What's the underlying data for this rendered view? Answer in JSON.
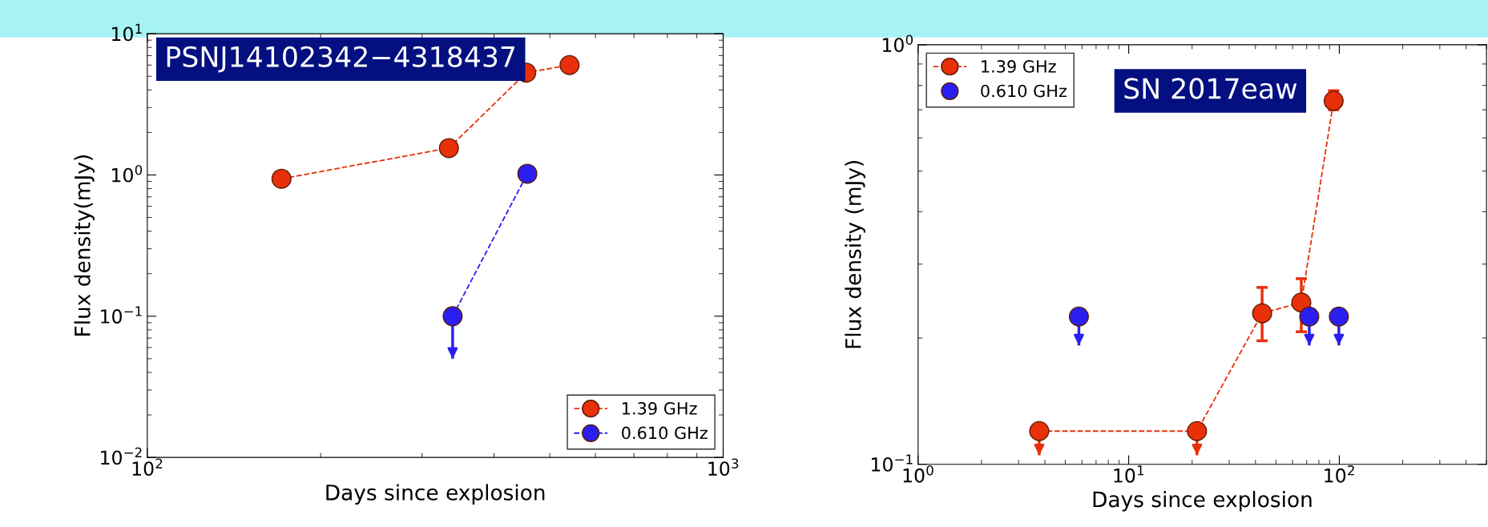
{
  "chart_data": [
    {
      "type": "line",
      "xlabel": "Days since explosion",
      "ylabel": "Flux density(mJy)",
      "log": "xy",
      "legend": "bottom right",
      "marker": "circle",
      "line_style": "dashed",
      "grid": false,
      "xlim": [
        100,
        1000
      ],
      "xticks": [
        {
          "value": 100,
          "label": "10$^{2}$"
        },
        {
          "value": 1000,
          "label": "10$^{3}$"
        }
      ],
      "ylim": [
        0.01,
        10
      ],
      "yticks": [
        {
          "value": 0.01,
          "label": "10$^{−2}$"
        },
        {
          "value": 0.1,
          "label": "10$^{−1}$"
        },
        {
          "value": 1,
          "label": "10$^{0}$"
        },
        {
          "value": 10,
          "label": "10$^{1}$"
        }
      ],
      "annotations": [
        "PSNJ14102342−4318437"
      ],
      "series": [
        {
          "name": "1.39 GHz",
          "color": "#e8300a",
          "x": [
            171,
            334,
            455,
            541
          ],
          "values": [
            0.94,
            1.55,
            5.3,
            6.0
          ]
        },
        {
          "name": "0.610 GHz",
          "color": "#2a1ff0",
          "x": [
            339,
            457
          ],
          "values": [
            0.1,
            1.02
          ],
          "errors": [
            [
              0.05,
              0.1
            ],
            null
          ]
        }
      ]
    },
    {
      "type": "line",
      "xlabel": "Days since explosion",
      "ylabel": "Flux density (mJy)",
      "log": "xy",
      "legend": "top left",
      "marker": "circle",
      "line_style": "dashed",
      "grid": false,
      "xlim": [
        1,
        500
      ],
      "xticks": [
        {
          "value": 1,
          "label": "10$^{0}$"
        },
        {
          "value": 10,
          "label": "10$^{1}$"
        },
        {
          "value": 100,
          "label": "10$^{2}$"
        }
      ],
      "ylim": [
        0.1,
        1
      ],
      "yticks": [
        {
          "value": 0.1,
          "label": "10$^{−1}$"
        },
        {
          "value": 1,
          "label": "10$^{0}$"
        }
      ],
      "annotations": [
        "SN 2017eaw"
      ],
      "series": [
        {
          "name": "1.39 GHz",
          "color": "#e8300a",
          "x": [
            3.76,
            21.1,
            43,
            66,
            94
          ],
          "values": [
            0.12,
            0.12,
            0.229,
            0.243,
            0.735
          ],
          "errors": [
            [
              0.105,
              0.12
            ],
            [
              0.105,
              0.12
            ],
            [
              0.197,
              0.264
            ],
            [
              0.207,
              0.277
            ],
            [
              0.7,
              0.777
            ]
          ]
        },
        {
          "name": "0.610 GHz",
          "type": "scatter",
          "color": "#2a1ff0",
          "x": [
            5.8,
            72,
            99.5
          ],
          "values": [
            0.225,
            0.225,
            0.225
          ],
          "errors": [
            [
              0.192,
              0.225
            ],
            [
              0.192,
              0.225
            ],
            [
              0.192,
              0.225
            ]
          ]
        }
      ]
    }
  ]
}
